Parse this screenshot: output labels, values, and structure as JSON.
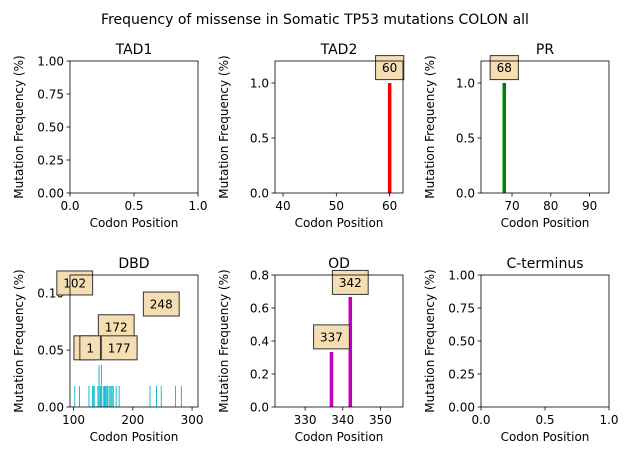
{
  "figure": {
    "title": "Frequency of missense in Somatic TP53 mutations COLON all"
  },
  "chart_data": [
    {
      "type": "bar",
      "title": "TAD1",
      "xlabel": "Codon Position",
      "ylabel": "Mutation Frequency (%)",
      "xlim": [
        0,
        1
      ],
      "ylim": [
        0,
        1
      ],
      "xticks": [
        "0.0",
        "0.5",
        "1.0"
      ],
      "yticks": [
        "0.00",
        "0.25",
        "0.50",
        "0.75",
        "1.00"
      ],
      "color": "#1f77b4",
      "x": [],
      "values": [],
      "annotations": []
    },
    {
      "type": "bar",
      "title": "TAD2",
      "xlabel": "Codon Position",
      "ylabel": "Mutation Frequency (%)",
      "xlim": [
        38.5,
        62.5
      ],
      "ylim": [
        0,
        1.2
      ],
      "xticks": [
        "40",
        "50",
        "60"
      ],
      "yticks": [
        "0.0",
        "0.5",
        "1.0"
      ],
      "color": "#ff0000",
      "x": [
        60
      ],
      "values": [
        1.0
      ],
      "annotations": [
        {
          "x": 60,
          "y": 1.14,
          "text": "60"
        }
      ]
    },
    {
      "type": "bar",
      "title": "PR",
      "xlabel": "Codon Position",
      "ylabel": "Mutation Frequency (%)",
      "xlim": [
        62,
        95
      ],
      "ylim": [
        0,
        1.2
      ],
      "xticks": [
        "70",
        "80",
        "90"
      ],
      "yticks": [
        "0.0",
        "0.5",
        "1.0"
      ],
      "color": "#008000",
      "x": [
        68
      ],
      "values": [
        1.0
      ],
      "annotations": [
        {
          "x": 68,
          "y": 1.14,
          "text": "68"
        }
      ]
    },
    {
      "type": "bar",
      "title": "DBD",
      "xlabel": "Codon Position",
      "ylabel": "Mutation Frequency (%)",
      "xlim": [
        94,
        310
      ],
      "ylim": [
        0,
        0.116
      ],
      "xticks": [
        "100",
        "200",
        "300"
      ],
      "yticks": [
        "0.00",
        "0.05",
        "0.10"
      ],
      "color": "#17becf",
      "x": [
        102,
        110,
        126,
        132,
        134,
        135,
        141,
        143,
        145,
        146,
        147,
        150,
        152,
        153,
        154,
        156,
        157,
        158,
        161,
        163,
        165,
        167,
        172,
        177,
        229,
        240,
        248,
        272,
        282
      ],
      "values": [
        0.0185,
        0.0185,
        0.0185,
        0.0185,
        0.0185,
        0.0185,
        0.0185,
        0.037,
        0.0185,
        0.0185,
        0.037,
        0.0185,
        0.0185,
        0.0185,
        0.0185,
        0.0185,
        0.0185,
        0.0185,
        0.0185,
        0.0185,
        0.0185,
        0.0185,
        0.0185,
        0.0185,
        0.0185,
        0.0185,
        0.0185,
        0.0185,
        0.0185
      ],
      "annotations": [
        {
          "x": 102,
          "y": 0.109,
          "text": "102"
        },
        {
          "x": 248,
          "y": 0.0905,
          "text": "248"
        },
        {
          "x": 172,
          "y": 0.0705,
          "text": "172"
        },
        {
          "x": 118,
          "y": 0.052,
          "text": "1"
        },
        {
          "x": 128,
          "y": 0.052,
          "text": "1"
        },
        {
          "x": 177,
          "y": 0.052,
          "text": "177"
        }
      ]
    },
    {
      "type": "bar",
      "title": "OD",
      "xlabel": "Codon Position",
      "ylabel": "Mutation Frequency (%)",
      "xlim": [
        322,
        356
      ],
      "ylim": [
        0,
        0.8
      ],
      "xticks": [
        "330",
        "340",
        "350"
      ],
      "yticks": [
        "0.0",
        "0.2",
        "0.4",
        "0.6",
        "0.8"
      ],
      "color": "#bf00bf",
      "x": [
        337,
        342
      ],
      "values": [
        0.333,
        0.667
      ],
      "annotations": [
        {
          "x": 337,
          "y": 0.425,
          "text": "337"
        },
        {
          "x": 342,
          "y": 0.755,
          "text": "342"
        }
      ]
    },
    {
      "type": "bar",
      "title": "C-terminus",
      "xlabel": "Codon Position",
      "ylabel": "Mutation Frequency (%)",
      "xlim": [
        0,
        1
      ],
      "ylim": [
        0,
        1
      ],
      "xticks": [
        "0.0",
        "0.5",
        "1.0"
      ],
      "yticks": [
        "0.00",
        "0.25",
        "0.50",
        "0.75",
        "1.00"
      ],
      "color": "#1f77b4",
      "x": [],
      "values": [],
      "annotations": []
    }
  ]
}
